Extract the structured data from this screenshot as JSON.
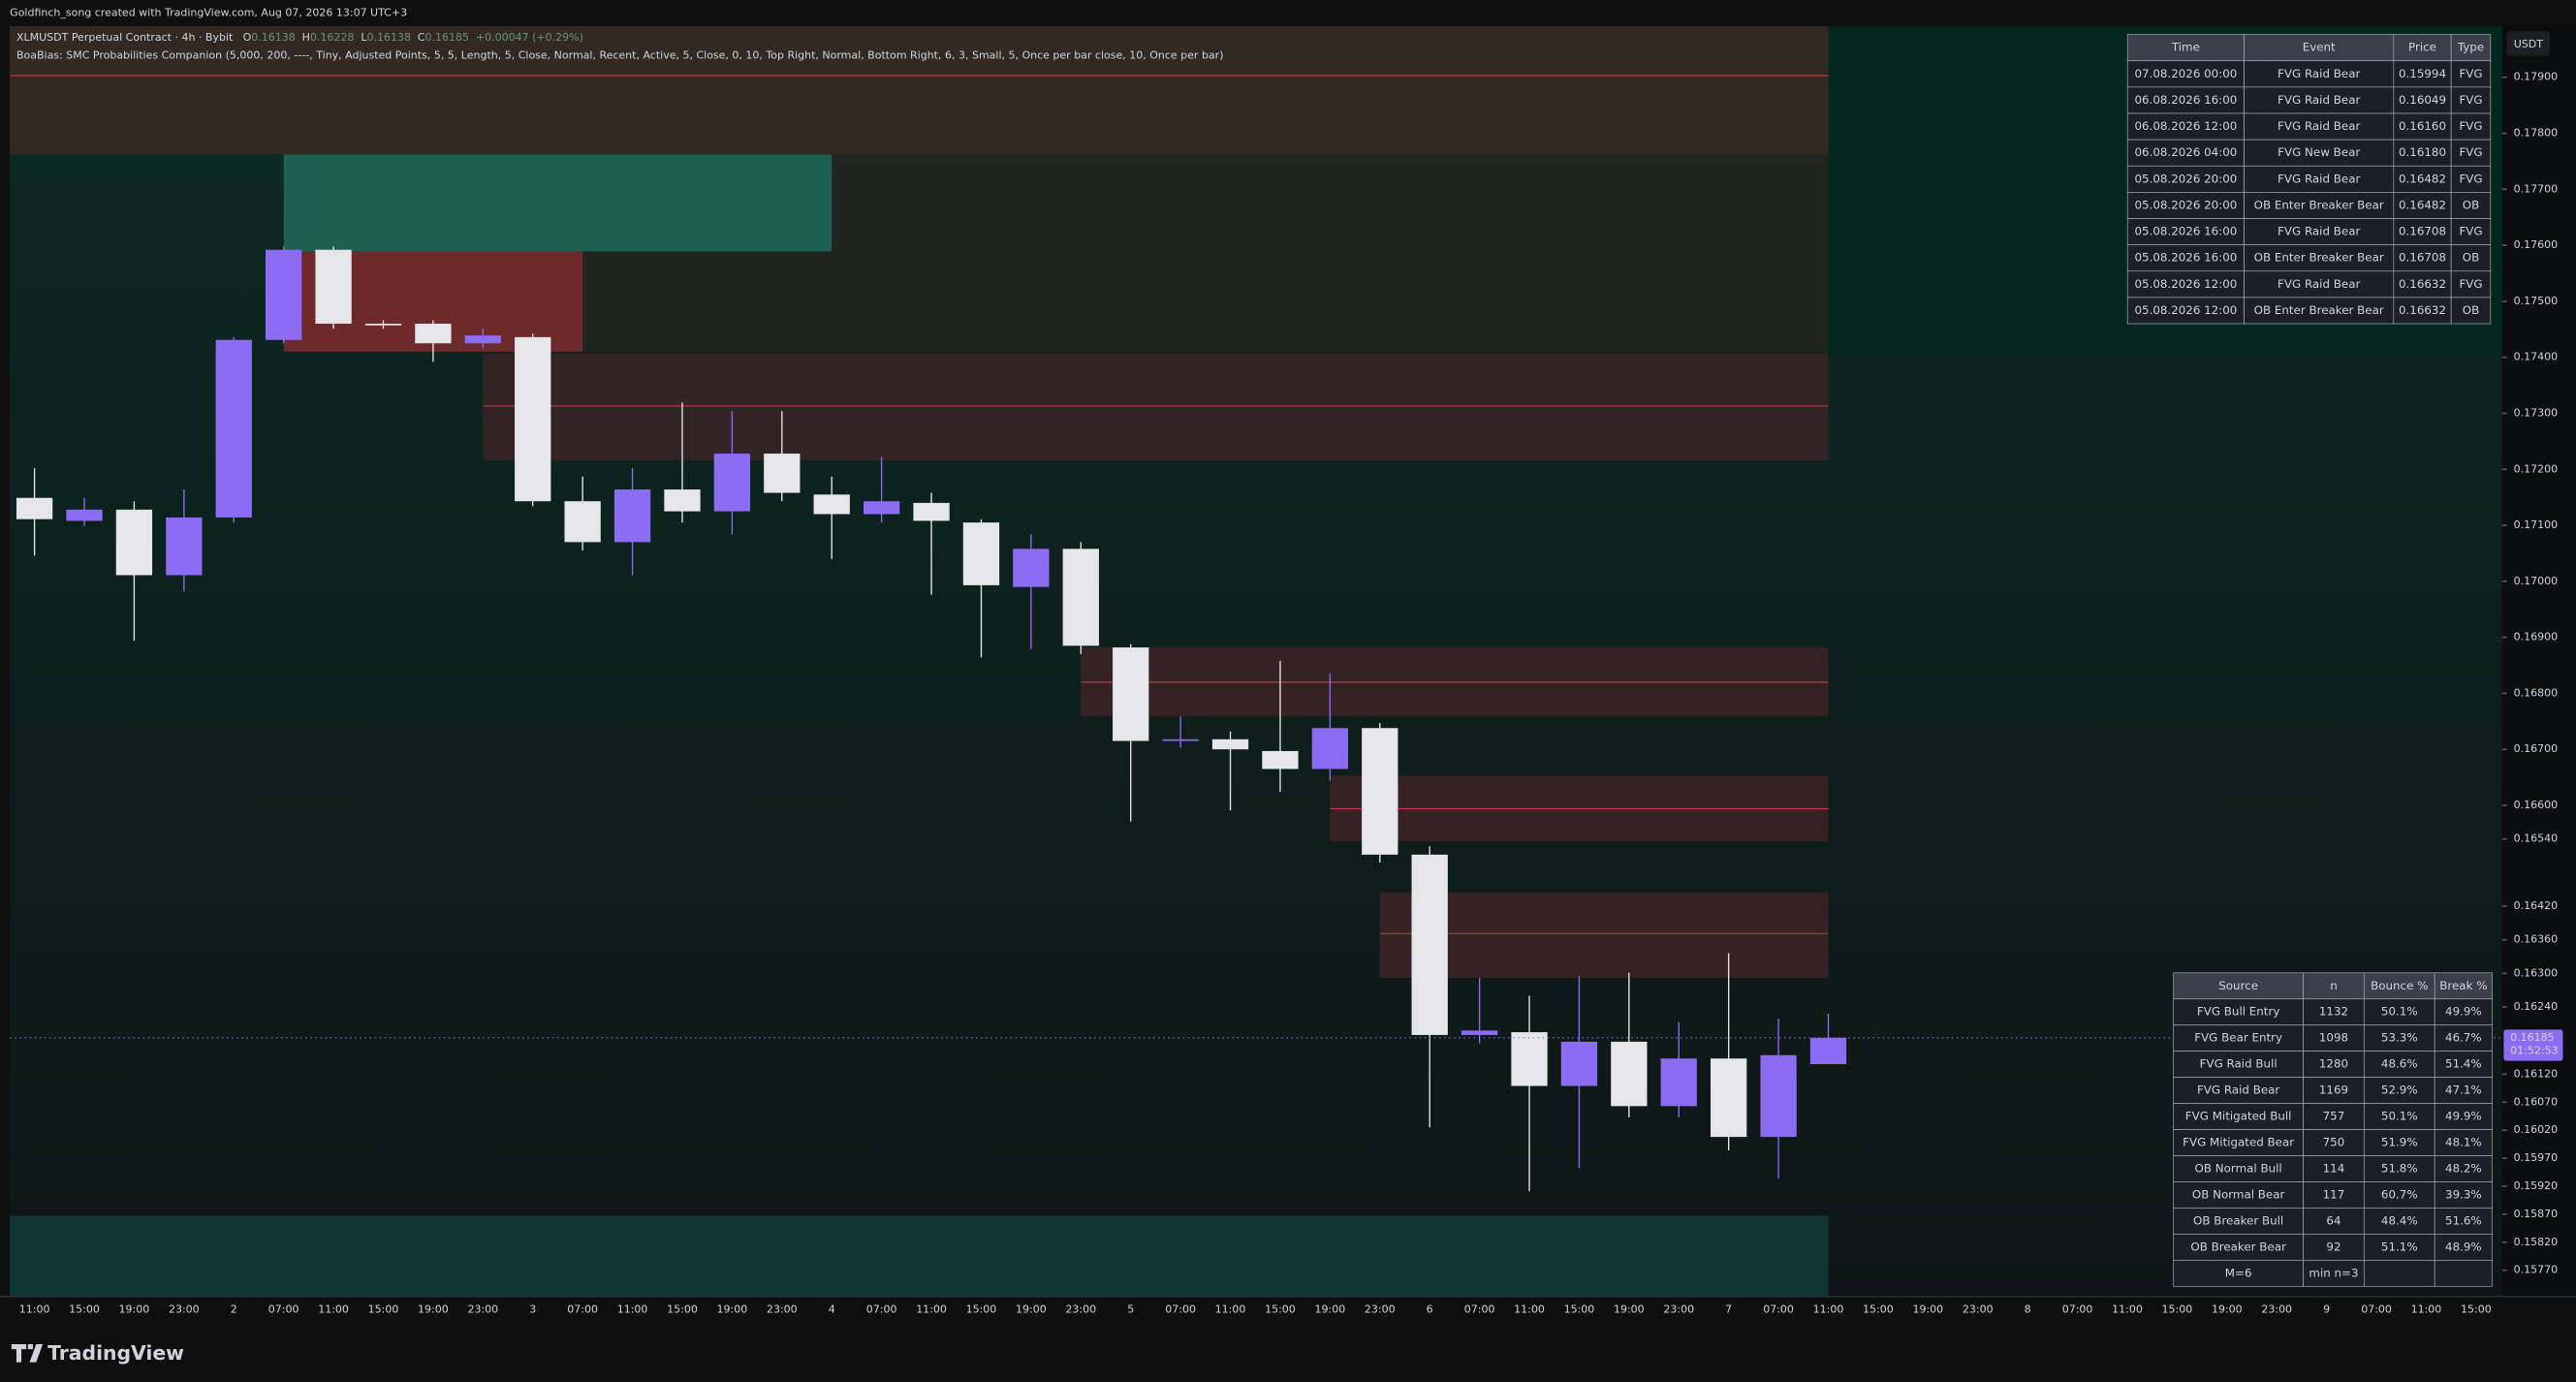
{
  "header": {
    "credit": "Goldfinch_song created with TradingView.com, Aug 07, 2026 13:07 UTC+3",
    "symbol": "XLMUSDT Perpetual Contract · 4h · Bybit",
    "ohlc_letters": [
      "O",
      "H",
      "L",
      "C"
    ],
    "change": "+0.00047 (+0.29%)",
    "indicator": "BoaBias: SMC Probabilities Companion (5,000, 200, ----, Tiny, Adjusted Points, 5, 5, Length, 5, Close, Normal, Recent, Active, 5, Close, 0, 10, Top Right, Normal, Bottom Right, 6, 3, Small, 5, Once per bar close, 10, Once per bar)",
    "currency": "USDT",
    "logo": "TradingView"
  },
  "chart_data": {
    "type": "candlestick",
    "categories": [
      "11:00",
      "15:00",
      "19:00",
      "23:00",
      "2",
      "07:00",
      "11:00",
      "15:00",
      "19:00",
      "23:00",
      "3",
      "07:00",
      "11:00",
      "15:00",
      "19:00",
      "23:00",
      "4",
      "07:00",
      "11:00",
      "15:00",
      "19:00",
      "23:00",
      "5",
      "07:00",
      "11:00",
      "15:00",
      "19:00",
      "23:00",
      "6",
      "07:00",
      "11:00",
      "15:00",
      "19:00",
      "23:00",
      "7",
      "07:00",
      "11:00",
      "15:00",
      "19:00",
      "23:00",
      "8",
      "07:00",
      "11:00",
      "15:00",
      "19:00",
      "23:00",
      "9",
      "07:00",
      "11:00",
      "15:00"
    ],
    "open": [
      0.17149,
      0.17108,
      0.17128,
      0.17011,
      0.17114,
      0.17431,
      0.17592,
      0.1746,
      0.1746,
      0.17425,
      0.17436,
      0.17143,
      0.1707,
      0.17164,
      0.17125,
      0.17228,
      0.17155,
      0.1712,
      0.1714,
      0.17105,
      0.1699,
      0.17058,
      0.16882,
      0.16715,
      0.16718,
      0.16697,
      0.16665,
      0.16738,
      0.16512,
      0.1619,
      0.16195,
      0.16099,
      0.16178,
      0.16063,
      0.16148,
      0.16008,
      0.16138,
      null,
      null,
      null,
      null,
      null,
      null,
      null,
      null,
      null,
      null,
      null,
      null,
      null
    ],
    "high": [
      0.17202,
      0.17149,
      0.17143,
      0.17164,
      0.17436,
      0.17598,
      0.17598,
      0.17466,
      0.17466,
      0.17451,
      0.17442,
      0.17187,
      0.17202,
      0.17319,
      0.17304,
      0.17304,
      0.17187,
      0.17222,
      0.17158,
      0.17111,
      0.17084,
      0.1707,
      0.16888,
      0.16759,
      0.16732,
      0.16858,
      0.16835,
      0.16747,
      0.16527,
      0.16292,
      0.1626,
      0.16295,
      0.16301,
      0.16213,
      0.16336,
      0.16219,
      0.16228,
      null,
      null,
      null,
      null,
      null,
      null,
      null,
      null,
      null,
      null,
      null,
      null,
      null
    ],
    "low": [
      0.17046,
      0.17099,
      0.16894,
      0.16982,
      0.17105,
      0.17425,
      0.17451,
      0.17451,
      0.17392,
      0.17416,
      0.17134,
      0.17055,
      0.17011,
      0.17105,
      0.17084,
      0.17143,
      0.1704,
      0.17105,
      0.16976,
      0.16864,
      0.16879,
      0.1687,
      0.16571,
      0.16703,
      0.16591,
      0.16624,
      0.16644,
      0.16498,
      0.16025,
      0.16175,
      0.15911,
      0.15952,
      0.16043,
      0.16043,
      0.15984,
      0.15934,
      0.16138,
      null,
      null,
      null,
      null,
      null,
      null,
      null,
      null,
      null,
      null,
      null,
      null,
      null
    ],
    "close": [
      0.17111,
      0.17128,
      0.17011,
      0.17114,
      0.17431,
      0.17592,
      0.1746,
      0.17457,
      0.17425,
      0.17439,
      0.17143,
      0.1707,
      0.17164,
      0.17125,
      0.17228,
      0.17158,
      0.1712,
      0.17143,
      0.17108,
      0.16993,
      0.17058,
      0.16885,
      0.16715,
      0.16718,
      0.167,
      0.16665,
      0.16738,
      0.16512,
      0.1619,
      0.16198,
      0.16099,
      0.16178,
      0.16063,
      0.16148,
      0.16008,
      0.16154,
      0.16185,
      null,
      null,
      null,
      null,
      null,
      null,
      null,
      null,
      null,
      null,
      null,
      null,
      null
    ],
    "up_color": "#8c6cf2",
    "down_color": "#e6e6ea",
    "countdown": "01:52:53",
    "ylim": [
      0.15723,
      0.17991
    ],
    "yticks": [
      {
        "value": 0.179,
        "label": "0.17900"
      },
      {
        "value": 0.178,
        "label": "0.17800"
      },
      {
        "value": 0.177,
        "label": "0.17700"
      },
      {
        "value": 0.176,
        "label": "0.17600"
      },
      {
        "value": 0.175,
        "label": "0.17500"
      },
      {
        "value": 0.174,
        "label": "0.17400"
      },
      {
        "value": 0.173,
        "label": "0.17300"
      },
      {
        "value": 0.172,
        "label": "0.17200"
      },
      {
        "value": 0.171,
        "label": "0.17100"
      },
      {
        "value": 0.17,
        "label": "0.17000"
      },
      {
        "value": 0.169,
        "label": "0.16900"
      },
      {
        "value": 0.168,
        "label": "0.16800"
      },
      {
        "value": 0.167,
        "label": "0.16700"
      },
      {
        "value": 0.166,
        "label": "0.16600"
      },
      {
        "value": 0.1654,
        "label": "0.16540"
      },
      {
        "value": 0.1642,
        "label": "0.16420"
      },
      {
        "value": 0.1636,
        "label": "0.16360"
      },
      {
        "value": 0.163,
        "label": "0.16300"
      },
      {
        "value": 0.1624,
        "label": "0.16240"
      },
      {
        "value": 0.1612,
        "label": "0.16120"
      },
      {
        "value": 0.1607,
        "label": "0.16070"
      },
      {
        "value": 0.1602,
        "label": "0.16020"
      },
      {
        "value": 0.1597,
        "label": "0.15970"
      },
      {
        "value": 0.1592,
        "label": "0.15920"
      },
      {
        "value": 0.1587,
        "label": "0.15870"
      },
      {
        "value": 0.1582,
        "label": "0.15820"
      },
      {
        "value": 0.1577,
        "label": "0.15770"
      }
    ],
    "zones": [
      {
        "from": -0.5,
        "to": 36,
        "top": 0.17991,
        "bottom": 0.17762,
        "color": "#3a2a22",
        "line": 0.17903
      },
      {
        "from": 5,
        "to": 36,
        "top": 0.17762,
        "bottom": 0.1741,
        "color": "#24251f"
      },
      {
        "from": 5,
        "to": 16,
        "top": 0.17762,
        "bottom": 0.17589,
        "color": "#1b6b5a"
      },
      {
        "from": 5,
        "to": 11,
        "top": 0.17589,
        "bottom": 0.1741,
        "color": "#7d2a2e"
      },
      {
        "from": 9,
        "to": 36,
        "top": 0.17407,
        "bottom": 0.17216,
        "color": "#3a2526",
        "line": 0.17313
      },
      {
        "from": 21,
        "to": 36,
        "top": 0.16882,
        "bottom": 0.16759,
        "color": "#3d2326",
        "line": 0.1682
      },
      {
        "from": 26,
        "to": 36,
        "top": 0.16653,
        "bottom": 0.16536,
        "color": "#3d2326",
        "line": 0.16594
      },
      {
        "from": 27,
        "to": 36,
        "top": 0.16445,
        "bottom": 0.16292,
        "color": "#3d2326",
        "line": 0.16371
      },
      {
        "from": -0.5,
        "to": 36,
        "top": 0.15867,
        "bottom": 0.15723,
        "color": "#0f3c38"
      }
    ]
  },
  "events_table": {
    "columns": [
      "Time",
      "Event",
      "Price",
      "Type"
    ],
    "type_colors": {
      "FVG": "#8e4fa8",
      "OB": "#f0a030"
    },
    "rows": [
      [
        "07.08.2026 00:00",
        "FVG Raid Bear",
        "0.15994",
        "FVG"
      ],
      [
        "06.08.2026 16:00",
        "FVG Raid Bear",
        "0.16049",
        "FVG"
      ],
      [
        "06.08.2026 12:00",
        "FVG Raid Bear",
        "0.16160",
        "FVG"
      ],
      [
        "06.08.2026 04:00",
        "FVG New Bear",
        "0.16180",
        "FVG"
      ],
      [
        "05.08.2026 20:00",
        "FVG Raid Bear",
        "0.16482",
        "FVG"
      ],
      [
        "05.08.2026 20:00",
        "OB Enter Breaker Bear",
        "0.16482",
        "OB"
      ],
      [
        "05.08.2026 16:00",
        "FVG Raid Bear",
        "0.16708",
        "FVG"
      ],
      [
        "05.08.2026 16:00",
        "OB Enter Breaker Bear",
        "0.16708",
        "OB"
      ],
      [
        "05.08.2026 12:00",
        "FVG Raid Bear",
        "0.16632",
        "FVG"
      ],
      [
        "05.08.2026 12:00",
        "OB Enter Breaker Bear",
        "0.16632",
        "OB"
      ]
    ]
  },
  "stats_table": {
    "columns": [
      "Source",
      "n",
      "Bounce %",
      "Break %"
    ],
    "bounce_color": "#2ecc71",
    "break_color": "#ef5350",
    "rows": [
      [
        "FVG Bull Entry",
        "1132",
        "50.1%",
        "49.9%"
      ],
      [
        "FVG Bear Entry",
        "1098",
        "53.3%",
        "46.7%"
      ],
      [
        "FVG Raid Bull",
        "1280",
        "48.6%",
        "51.4%"
      ],
      [
        "FVG Raid Bear",
        "1169",
        "52.9%",
        "47.1%"
      ],
      [
        "FVG Mitigated Bull",
        "757",
        "50.1%",
        "49.9%"
      ],
      [
        "FVG Mitigated Bear",
        "750",
        "51.9%",
        "48.1%"
      ],
      [
        "OB Normal Bull",
        "114",
        "51.8%",
        "48.2%"
      ],
      [
        "OB Normal Bear",
        "117",
        "60.7%",
        "39.3%"
      ],
      [
        "OB Breaker Bull",
        "64",
        "48.4%",
        "51.6%"
      ],
      [
        "OB Breaker Bear",
        "92",
        "51.1%",
        "48.9%"
      ]
    ],
    "footer": [
      "M=6",
      "min n=3"
    ]
  }
}
